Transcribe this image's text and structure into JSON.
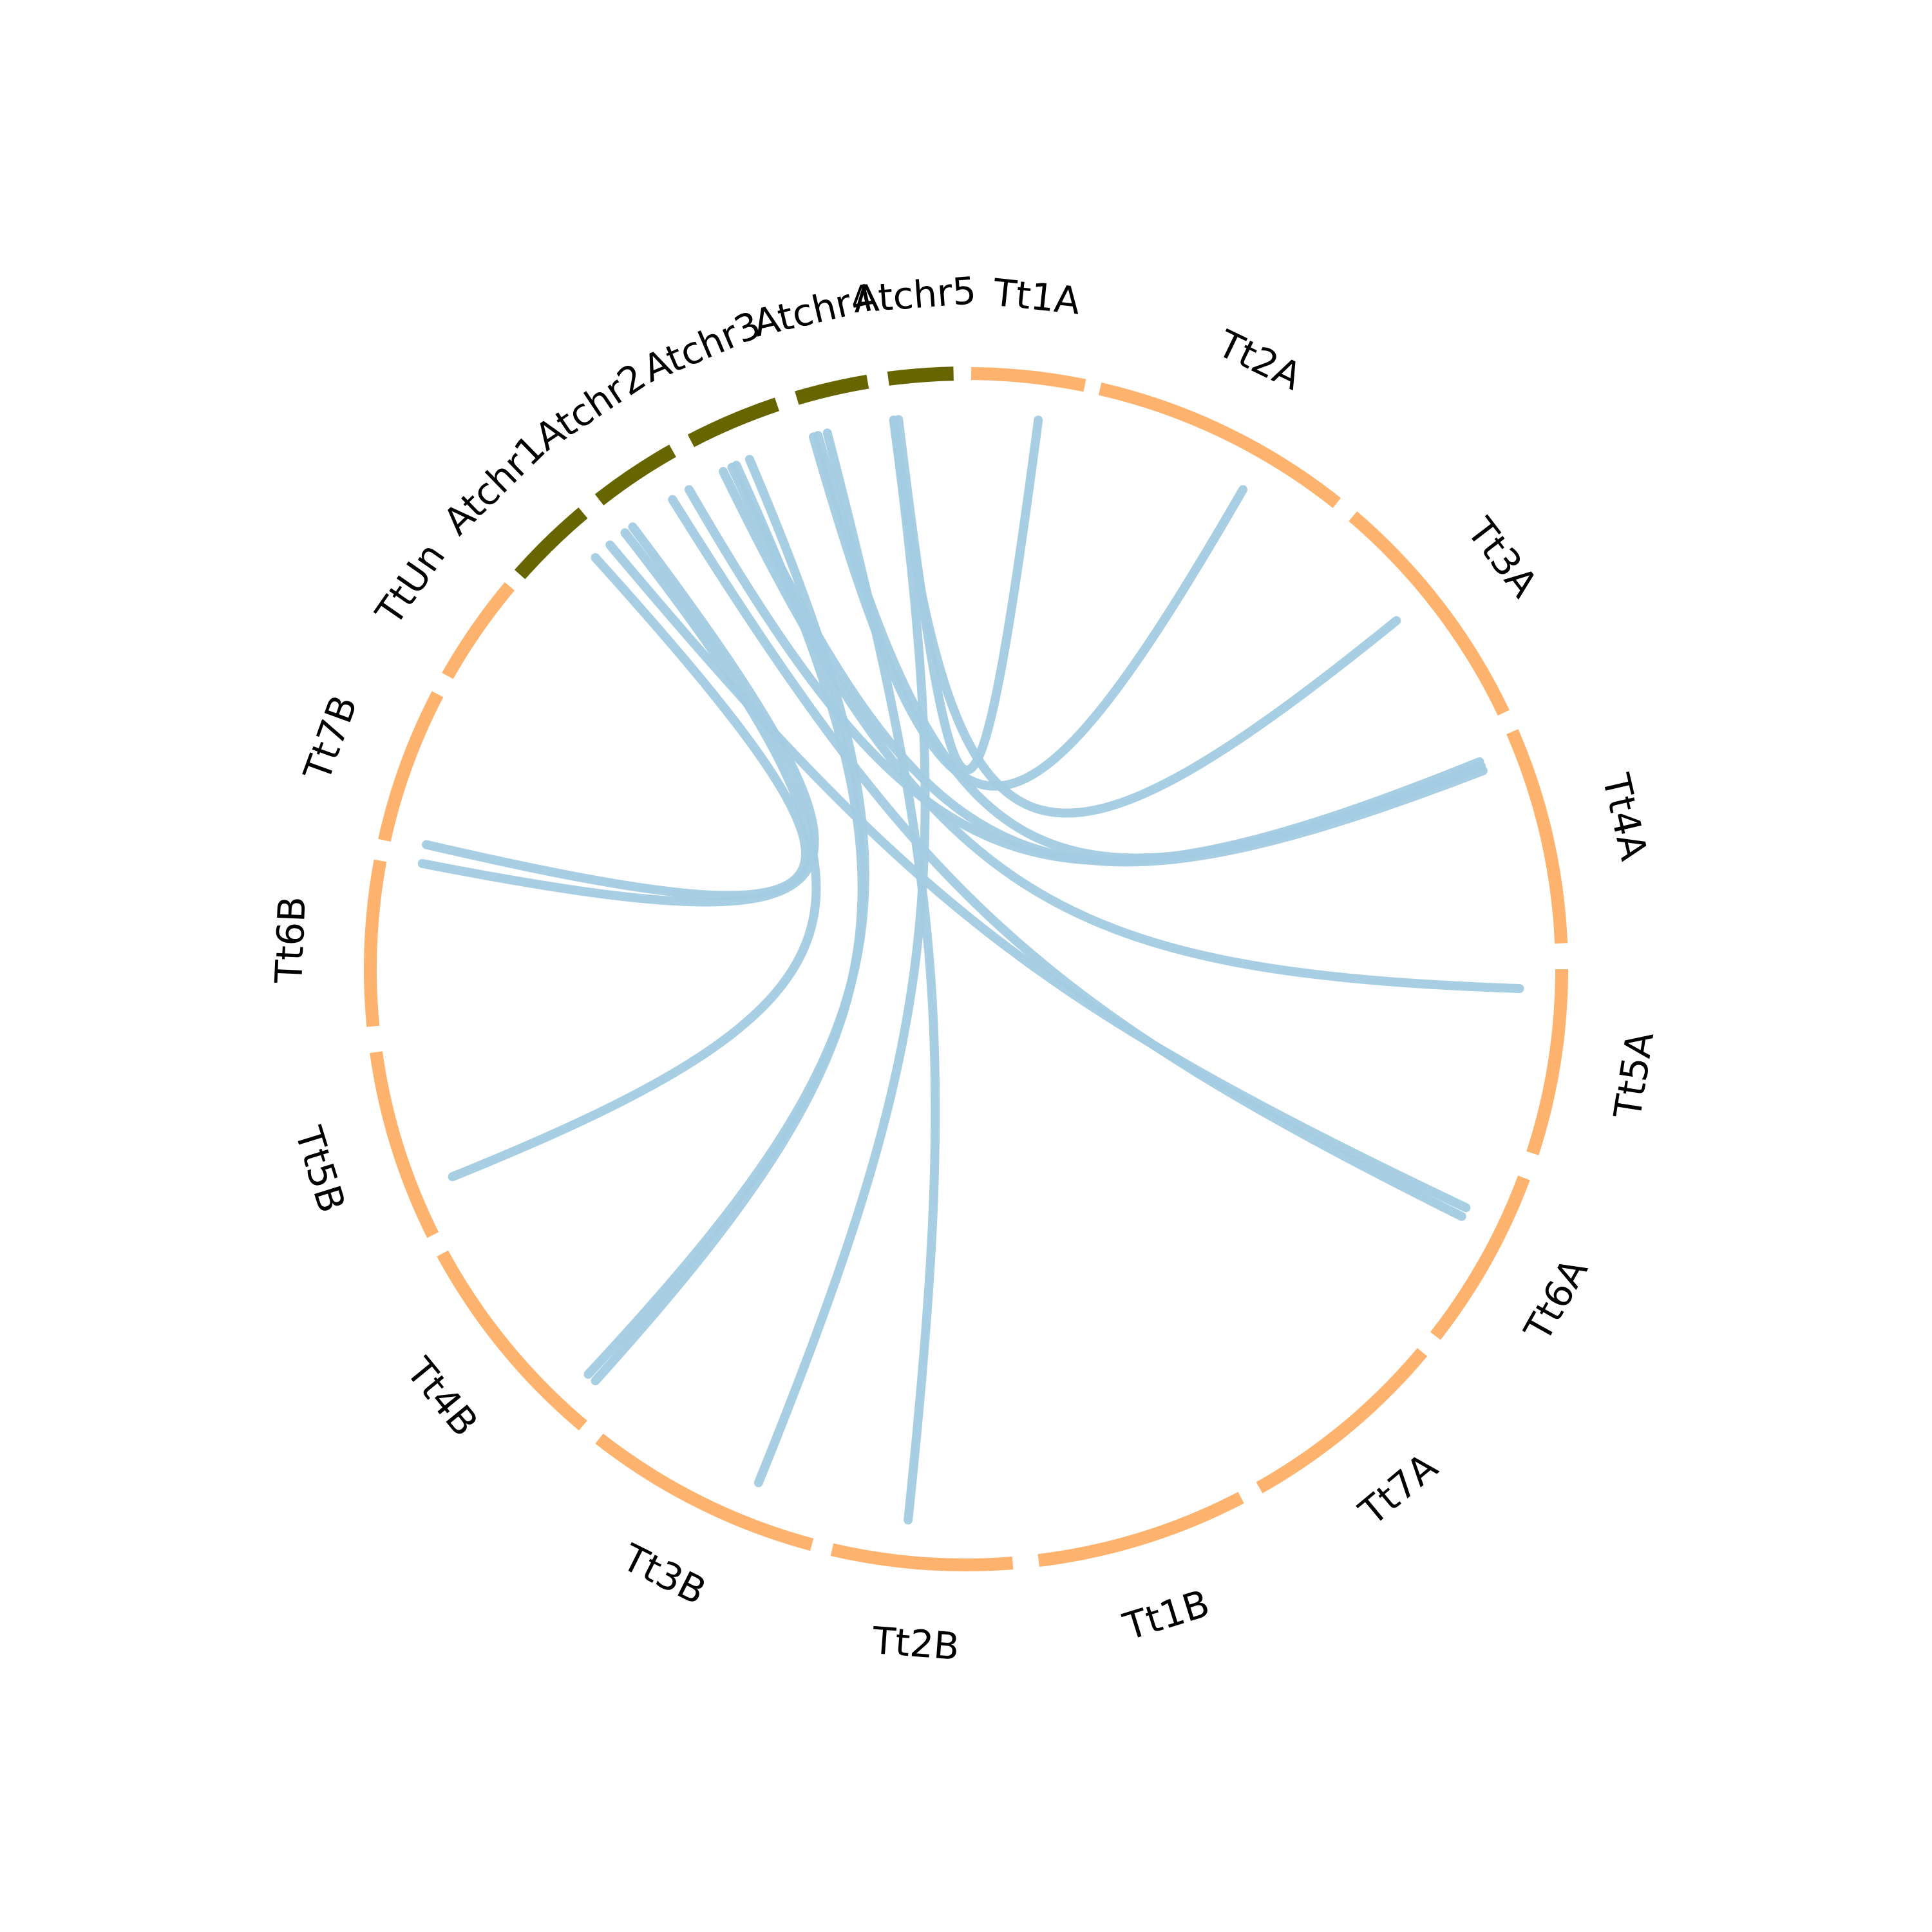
{
  "chart_data": {
    "type": "chord",
    "colors": {
      "wheat": "#fdb36e",
      "arabidopsis": "#676500",
      "link": "#a2cbe1"
    },
    "segments": [
      {
        "label": "Tt1A",
        "group": "wheat"
      },
      {
        "label": "Tt2A",
        "group": "wheat"
      },
      {
        "label": "Tt3A",
        "group": "wheat"
      },
      {
        "label": "Tt4A",
        "group": "wheat"
      },
      {
        "label": "Tt5A",
        "group": "wheat"
      },
      {
        "label": "Tt6A",
        "group": "wheat"
      },
      {
        "label": "Tt7A",
        "group": "wheat"
      },
      {
        "label": "Tt1B",
        "group": "wheat"
      },
      {
        "label": "Tt2B",
        "group": "wheat"
      },
      {
        "label": "Tt3B",
        "group": "wheat"
      },
      {
        "label": "Tt4B",
        "group": "wheat"
      },
      {
        "label": "Tt5B",
        "group": "wheat"
      },
      {
        "label": "Tt6B",
        "group": "wheat"
      },
      {
        "label": "Tt7B",
        "group": "wheat"
      },
      {
        "label": "TtUn",
        "group": "wheat"
      },
      {
        "label": "Atchr1",
        "group": "arabidopsis"
      },
      {
        "label": "Atchr2",
        "group": "arabidopsis"
      },
      {
        "label": "Atchr3",
        "group": "arabidopsis"
      },
      {
        "label": "Atchr4",
        "group": "arabidopsis"
      },
      {
        "label": "Atchr5",
        "group": "arabidopsis"
      }
    ],
    "links": [
      {
        "from": "Atchr5",
        "to": "Tt1A"
      },
      {
        "from": "Atchr4",
        "to": "Tt2A"
      },
      {
        "from": "Atchr5",
        "to": "Tt3A"
      },
      {
        "from": "Atchr4",
        "to": "Tt4A"
      },
      {
        "from": "Atchr3",
        "to": "Tt4A"
      },
      {
        "from": "Atchr2",
        "to": "Tt4A"
      },
      {
        "from": "Atchr3",
        "to": "Tt5A"
      },
      {
        "from": "Atchr2",
        "to": "Tt6A"
      },
      {
        "from": "Atchr1",
        "to": "Tt6A"
      },
      {
        "from": "Atchr4",
        "to": "Tt2B"
      },
      {
        "from": "Atchr5",
        "to": "Tt3B"
      },
      {
        "from": "Atchr3",
        "to": "Tt4B"
      },
      {
        "from": "Atchr4",
        "to": "Tt4B"
      },
      {
        "from": "Atchr2",
        "to": "Tt5B"
      },
      {
        "from": "Atchr1",
        "to": "Tt6B"
      },
      {
        "from": "Atchr2",
        "to": "Tt6B"
      }
    ]
  }
}
